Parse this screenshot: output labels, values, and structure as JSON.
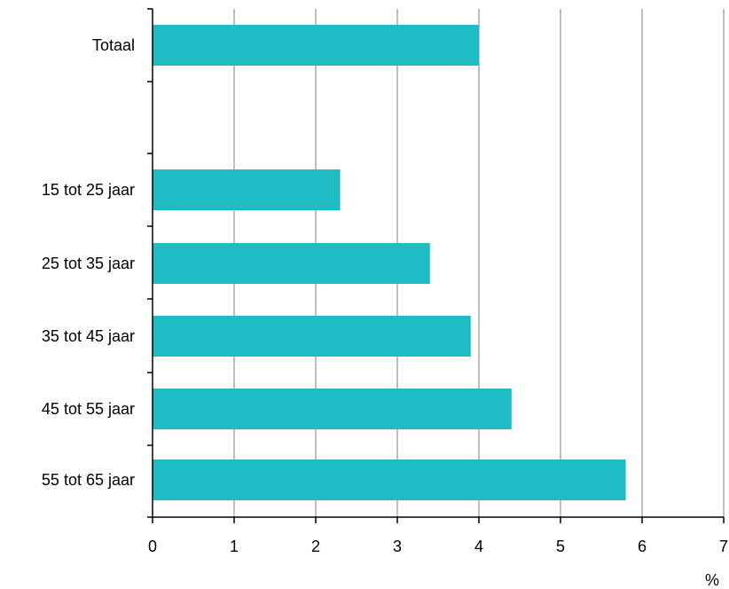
{
  "chart_data": {
    "type": "bar",
    "orientation": "horizontal",
    "title": "",
    "xlabel": "%",
    "ylabel": "",
    "categories": [
      "Totaal",
      "15 tot 25 jaar",
      "25 tot 35 jaar",
      "35 tot 45 jaar",
      "45 tot 55 jaar",
      "55 tot 65 jaar"
    ],
    "values": [
      4.0,
      2.3,
      3.4,
      3.9,
      4.4,
      5.8
    ],
    "xlim": [
      0,
      7
    ],
    "xticks": [
      "0",
      "1",
      "2",
      "3",
      "4",
      "5",
      "6",
      "7"
    ],
    "grid": "vertical",
    "legend": "none",
    "bar_color": "#1fbcc6",
    "grid_color": "#aaaaaa",
    "axis_color": "#000000"
  }
}
